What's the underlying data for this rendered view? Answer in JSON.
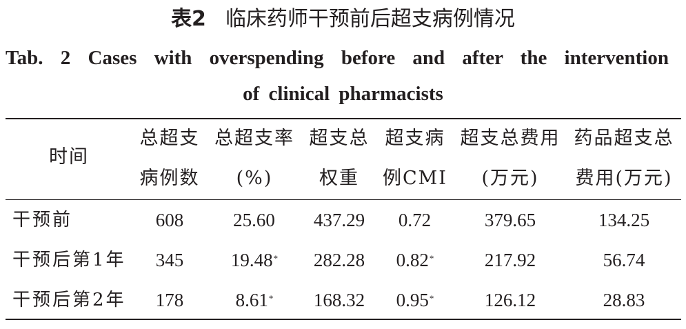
{
  "title_cn": {
    "number": "表2",
    "text": "临床药师干预前后超支病例情况"
  },
  "title_en": {
    "line1": "Tab. 2 Cases with overspending before and after the intervention",
    "line2": "of clinical pharmacists"
  },
  "columns": [
    {
      "line1": "时间",
      "line2": ""
    },
    {
      "line1": "总超支",
      "line2": "病例数"
    },
    {
      "line1": "总超支率",
      "line2": "(%)"
    },
    {
      "line1": "超支总",
      "line2": "权重"
    },
    {
      "line1": "超支病",
      "line2": "例CMI"
    },
    {
      "line1": "超支总费用",
      "line2": "(万元)"
    },
    {
      "line1": "药品超支总",
      "line2": "费用(万元)"
    }
  ],
  "rows": [
    {
      "label": "干预前",
      "cases": "608",
      "rate": "25.60",
      "rate_mark": "",
      "weight": "437.29",
      "cmi": "0.72",
      "cmi_mark": "",
      "cost": "379.65",
      "drug_cost": "134.25"
    },
    {
      "label": "干预后第1年",
      "cases": "345",
      "rate": "19.48",
      "rate_mark": "*",
      "weight": "282.28",
      "cmi": "0.82",
      "cmi_mark": "*",
      "cost": "217.92",
      "drug_cost": "56.74"
    },
    {
      "label": "干预后第2年",
      "cases": "178",
      "rate": "8.61",
      "rate_mark": "*",
      "weight": "168.32",
      "cmi": "0.95",
      "cmi_mark": "*",
      "cost": "126.12",
      "drug_cost": "28.83"
    }
  ]
}
